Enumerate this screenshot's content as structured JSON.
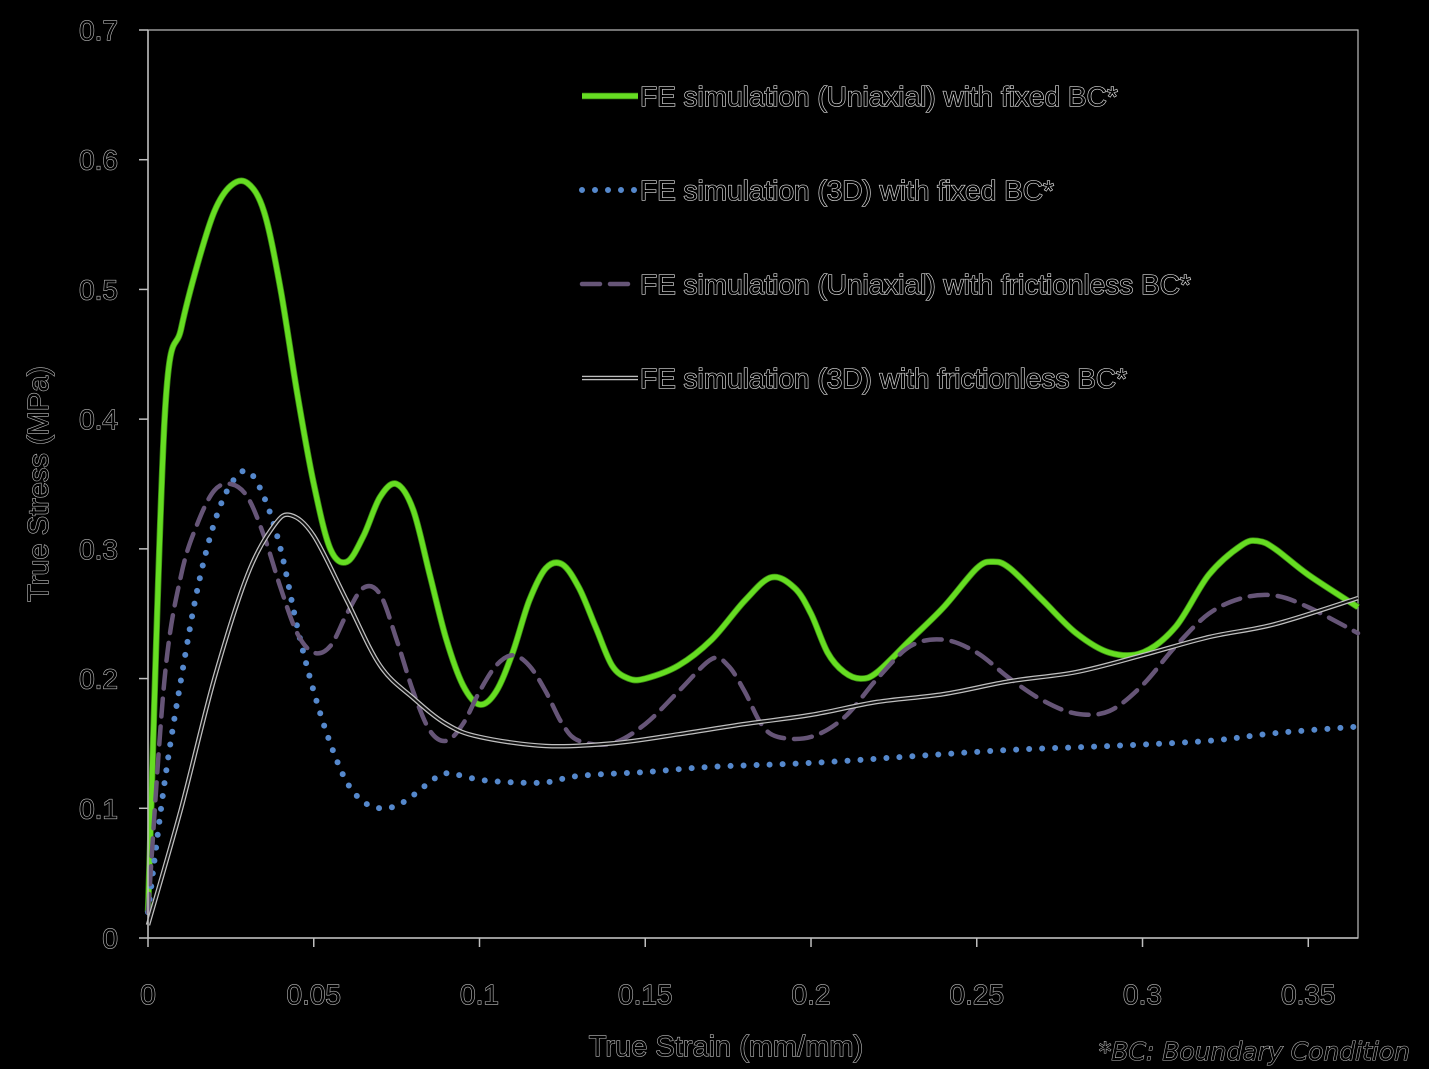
{
  "chart_data": {
    "type": "line",
    "xlabel": "True Strain (mm/mm)",
    "ylabel": "True Stress (MPa)",
    "xlim": [
      0,
      0.365
    ],
    "ylim": [
      0,
      0.7
    ],
    "x_ticks": [
      0,
      0.05,
      0.1,
      0.15,
      0.2,
      0.25,
      0.3,
      0.35
    ],
    "x_tick_labels": [
      "0",
      "0.05",
      "0.1",
      "0.15",
      "0.2",
      "0.25",
      "0.3",
      "0.35"
    ],
    "y_ticks": [
      0,
      0.1,
      0.2,
      0.3,
      0.4,
      0.5,
      0.6,
      0.7
    ],
    "y_tick_labels": [
      "0",
      "0.1",
      "0.2",
      "0.3",
      "0.4",
      "0.5",
      "0.6",
      "0.7"
    ],
    "grid": false,
    "legend_position": "top-right",
    "footnote": "*BC: Boundary Condition",
    "series": [
      {
        "name": "FE simulation (Uniaxial) with fixed BC*",
        "style": "solid-thick",
        "color": "#66dd22",
        "points": [
          [
            0,
            0.02
          ],
          [
            0.005,
            0.4
          ],
          [
            0.01,
            0.47
          ],
          [
            0.015,
            0.52
          ],
          [
            0.02,
            0.56
          ],
          [
            0.025,
            0.58
          ],
          [
            0.03,
            0.582
          ],
          [
            0.035,
            0.56
          ],
          [
            0.04,
            0.5
          ],
          [
            0.045,
            0.42
          ],
          [
            0.05,
            0.35
          ],
          [
            0.055,
            0.3
          ],
          [
            0.06,
            0.29
          ],
          [
            0.065,
            0.31
          ],
          [
            0.07,
            0.34
          ],
          [
            0.075,
            0.35
          ],
          [
            0.08,
            0.33
          ],
          [
            0.085,
            0.28
          ],
          [
            0.09,
            0.23
          ],
          [
            0.095,
            0.195
          ],
          [
            0.1,
            0.18
          ],
          [
            0.105,
            0.19
          ],
          [
            0.11,
            0.22
          ],
          [
            0.115,
            0.26
          ],
          [
            0.12,
            0.285
          ],
          [
            0.125,
            0.288
          ],
          [
            0.13,
            0.27
          ],
          [
            0.135,
            0.24
          ],
          [
            0.14,
            0.21
          ],
          [
            0.145,
            0.2
          ],
          [
            0.15,
            0.2
          ],
          [
            0.16,
            0.21
          ],
          [
            0.17,
            0.23
          ],
          [
            0.18,
            0.26
          ],
          [
            0.188,
            0.278
          ],
          [
            0.195,
            0.27
          ],
          [
            0.2,
            0.25
          ],
          [
            0.205,
            0.22
          ],
          [
            0.21,
            0.205
          ],
          [
            0.215,
            0.2
          ],
          [
            0.22,
            0.205
          ],
          [
            0.23,
            0.23
          ],
          [
            0.24,
            0.255
          ],
          [
            0.25,
            0.285
          ],
          [
            0.255,
            0.29
          ],
          [
            0.26,
            0.285
          ],
          [
            0.27,
            0.26
          ],
          [
            0.28,
            0.235
          ],
          [
            0.29,
            0.22
          ],
          [
            0.3,
            0.22
          ],
          [
            0.31,
            0.24
          ],
          [
            0.32,
            0.28
          ],
          [
            0.33,
            0.303
          ],
          [
            0.335,
            0.306
          ],
          [
            0.34,
            0.3
          ],
          [
            0.35,
            0.28
          ],
          [
            0.365,
            0.255
          ]
        ]
      },
      {
        "name": "FE simulation (3D) with fixed BC*",
        "style": "dotted",
        "color": "#5588cc",
        "points": [
          [
            0,
            0.02
          ],
          [
            0.005,
            0.12
          ],
          [
            0.01,
            0.2
          ],
          [
            0.015,
            0.27
          ],
          [
            0.02,
            0.32
          ],
          [
            0.025,
            0.35
          ],
          [
            0.03,
            0.36
          ],
          [
            0.035,
            0.34
          ],
          [
            0.04,
            0.3
          ],
          [
            0.045,
            0.24
          ],
          [
            0.05,
            0.19
          ],
          [
            0.055,
            0.15
          ],
          [
            0.06,
            0.12
          ],
          [
            0.065,
            0.105
          ],
          [
            0.07,
            0.1
          ],
          [
            0.075,
            0.102
          ],
          [
            0.08,
            0.11
          ],
          [
            0.085,
            0.12
          ],
          [
            0.09,
            0.127
          ],
          [
            0.1,
            0.122
          ],
          [
            0.11,
            0.12
          ],
          [
            0.12,
            0.12
          ],
          [
            0.13,
            0.125
          ],
          [
            0.15,
            0.128
          ],
          [
            0.17,
            0.132
          ],
          [
            0.2,
            0.135
          ],
          [
            0.23,
            0.14
          ],
          [
            0.26,
            0.145
          ],
          [
            0.29,
            0.148
          ],
          [
            0.32,
            0.152
          ],
          [
            0.34,
            0.158
          ],
          [
            0.365,
            0.163
          ]
        ]
      },
      {
        "name": "FE simulation (Uniaxial) with frictionless BC*",
        "style": "dashed",
        "color": "#665577",
        "points": [
          [
            0,
            0.02
          ],
          [
            0.005,
            0.2
          ],
          [
            0.01,
            0.28
          ],
          [
            0.015,
            0.32
          ],
          [
            0.02,
            0.345
          ],
          [
            0.025,
            0.35
          ],
          [
            0.03,
            0.34
          ],
          [
            0.035,
            0.31
          ],
          [
            0.04,
            0.27
          ],
          [
            0.045,
            0.235
          ],
          [
            0.05,
            0.22
          ],
          [
            0.055,
            0.225
          ],
          [
            0.06,
            0.25
          ],
          [
            0.065,
            0.27
          ],
          [
            0.07,
            0.265
          ],
          [
            0.075,
            0.23
          ],
          [
            0.08,
            0.19
          ],
          [
            0.085,
            0.16
          ],
          [
            0.09,
            0.152
          ],
          [
            0.095,
            0.165
          ],
          [
            0.1,
            0.19
          ],
          [
            0.105,
            0.21
          ],
          [
            0.11,
            0.218
          ],
          [
            0.115,
            0.21
          ],
          [
            0.12,
            0.19
          ],
          [
            0.125,
            0.165
          ],
          [
            0.13,
            0.152
          ],
          [
            0.14,
            0.15
          ],
          [
            0.15,
            0.165
          ],
          [
            0.16,
            0.19
          ],
          [
            0.17,
            0.215
          ],
          [
            0.175,
            0.21
          ],
          [
            0.18,
            0.19
          ],
          [
            0.185,
            0.165
          ],
          [
            0.19,
            0.155
          ],
          [
            0.2,
            0.155
          ],
          [
            0.21,
            0.17
          ],
          [
            0.22,
            0.2
          ],
          [
            0.23,
            0.225
          ],
          [
            0.24,
            0.23
          ],
          [
            0.25,
            0.22
          ],
          [
            0.26,
            0.2
          ],
          [
            0.27,
            0.183
          ],
          [
            0.28,
            0.173
          ],
          [
            0.29,
            0.175
          ],
          [
            0.3,
            0.195
          ],
          [
            0.31,
            0.225
          ],
          [
            0.32,
            0.25
          ],
          [
            0.33,
            0.262
          ],
          [
            0.34,
            0.264
          ],
          [
            0.35,
            0.255
          ],
          [
            0.365,
            0.235
          ]
        ]
      },
      {
        "name": "FE simulation (3D) with frictionless BC*",
        "style": "solid-thin",
        "color": "#111111",
        "points": [
          [
            0,
            0.01
          ],
          [
            0.01,
            0.1
          ],
          [
            0.02,
            0.2
          ],
          [
            0.03,
            0.28
          ],
          [
            0.038,
            0.318
          ],
          [
            0.043,
            0.326
          ],
          [
            0.05,
            0.31
          ],
          [
            0.06,
            0.26
          ],
          [
            0.07,
            0.21
          ],
          [
            0.08,
            0.185
          ],
          [
            0.09,
            0.165
          ],
          [
            0.1,
            0.155
          ],
          [
            0.12,
            0.148
          ],
          [
            0.14,
            0.15
          ],
          [
            0.16,
            0.157
          ],
          [
            0.18,
            0.165
          ],
          [
            0.2,
            0.172
          ],
          [
            0.22,
            0.182
          ],
          [
            0.24,
            0.188
          ],
          [
            0.26,
            0.198
          ],
          [
            0.28,
            0.205
          ],
          [
            0.3,
            0.218
          ],
          [
            0.32,
            0.232
          ],
          [
            0.34,
            0.242
          ],
          [
            0.365,
            0.262
          ]
        ]
      }
    ]
  }
}
